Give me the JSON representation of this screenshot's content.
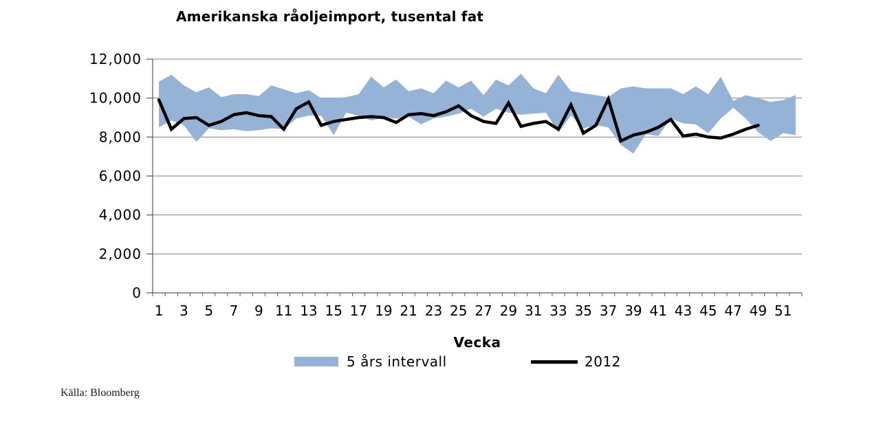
{
  "source_note": "Källa: Bloomberg",
  "colors": {
    "background": "#FFFFFF",
    "band": "#95B3D7",
    "line_2012": "#000000",
    "gridline": "#808080",
    "axis": "#595959",
    "text": "#000000"
  },
  "chart_data": {
    "type": "area",
    "title": "Amerikanska råoljeimport, tusental fat",
    "xlabel": "Vecka",
    "ylabel": "",
    "ylim": [
      0,
      12000
    ],
    "y_ticks": [
      0,
      2000,
      4000,
      6000,
      8000,
      10000,
      12000
    ],
    "x_weeks": [
      1,
      2,
      3,
      4,
      5,
      6,
      7,
      8,
      9,
      10,
      11,
      12,
      13,
      14,
      15,
      16,
      17,
      18,
      19,
      20,
      21,
      22,
      23,
      24,
      25,
      26,
      27,
      28,
      29,
      30,
      31,
      32,
      33,
      34,
      35,
      36,
      37,
      38,
      39,
      40,
      41,
      42,
      43,
      44,
      45,
      46,
      47,
      48,
      49,
      50,
      51,
      52
    ],
    "x_tick_labels": [
      "1",
      "3",
      "5",
      "7",
      "9",
      "11",
      "13",
      "15",
      "17",
      "19",
      "21",
      "23",
      "25",
      "27",
      "29",
      "31",
      "33",
      "35",
      "37",
      "39",
      "41",
      "43",
      "45",
      "47",
      "49",
      "51"
    ],
    "grid": "horizontal",
    "legend_position": "bottom",
    "series": [
      {
        "name": "5 års intervall",
        "type": "band",
        "color": "#95B3D7",
        "upper": [
          10850,
          11200,
          10650,
          10300,
          10550,
          10050,
          10200,
          10200,
          10100,
          10650,
          10450,
          10250,
          10400,
          10000,
          10000,
          10050,
          10200,
          11100,
          10550,
          10950,
          10350,
          10500,
          10250,
          10900,
          10550,
          10900,
          10150,
          10950,
          10650,
          11250,
          10500,
          10250,
          11200,
          10350,
          10250,
          10150,
          10050,
          10500,
          10600,
          10500,
          10500,
          10500,
          10200,
          10600,
          10200,
          11100,
          9850,
          10150,
          10000,
          9800,
          9900,
          10150
        ],
        "lower": [
          8500,
          8850,
          8600,
          7750,
          8450,
          8350,
          8400,
          8300,
          8350,
          8450,
          8400,
          8950,
          9100,
          9100,
          8100,
          9250,
          9100,
          8850,
          9000,
          8950,
          9050,
          8650,
          8950,
          9050,
          9200,
          9450,
          9050,
          9450,
          9250,
          9150,
          9200,
          9250,
          8250,
          9100,
          8450,
          8600,
          8500,
          7600,
          7150,
          8150,
          8050,
          8950,
          8700,
          8650,
          8200,
          8950,
          9500,
          8950,
          8250,
          7800,
          8200,
          8100
        ]
      },
      {
        "name": "2012",
        "type": "line",
        "color": "#000000",
        "values": [
          9900,
          8400,
          8950,
          9000,
          8600,
          8800,
          9150,
          9250,
          9100,
          9050,
          8400,
          9450,
          9800,
          8600,
          8800,
          8900,
          9000,
          9050,
          9000,
          8750,
          9150,
          9200,
          9100,
          9300,
          9600,
          9100,
          8800,
          8700,
          9750,
          8550,
          8700,
          8800,
          8400,
          9650,
          8200,
          8600,
          9950,
          7800,
          8100,
          8250,
          8500,
          8900,
          8050,
          8150,
          8000,
          7950,
          8150,
          8400,
          8600
        ]
      }
    ]
  }
}
